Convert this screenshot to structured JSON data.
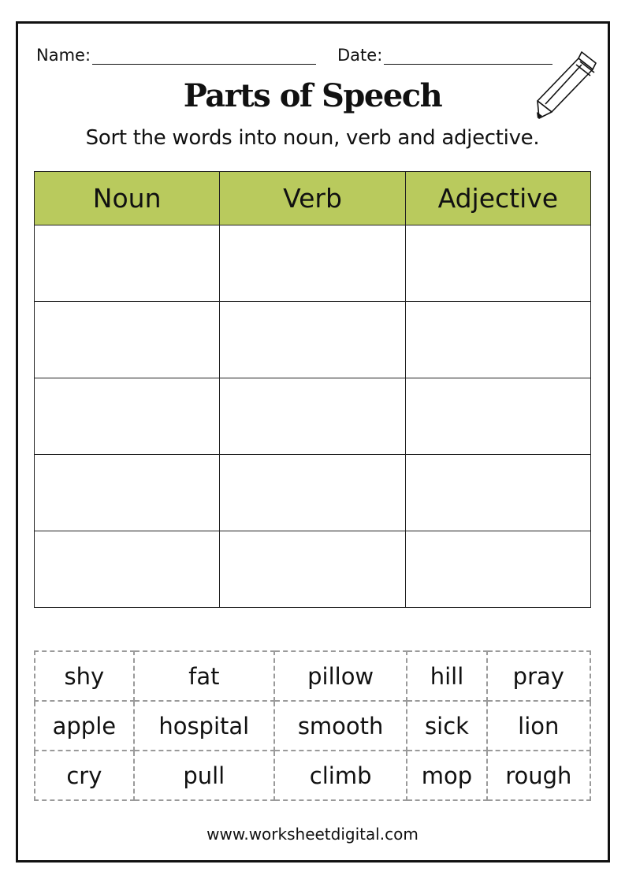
{
  "header": {
    "name_label": "Name:",
    "date_label": "Date:",
    "title": "Parts of Speech",
    "instructions": "Sort the words into noun, verb and adjective."
  },
  "sort_table": {
    "columns": [
      "Noun",
      "Verb",
      "Adjective"
    ],
    "header_color": "#b9ca5d",
    "empty_rows": 5
  },
  "word_bank": [
    [
      "shy",
      "fat",
      "pillow",
      "hill",
      "pray"
    ],
    [
      "apple",
      "hospital",
      "smooth",
      "sick",
      "lion"
    ],
    [
      "cry",
      "pull",
      "climb",
      "mop",
      "rough"
    ]
  ],
  "footer": {
    "website": "www.worksheetdigital.com"
  },
  "icons": {
    "decoration": "pencil-icon"
  }
}
